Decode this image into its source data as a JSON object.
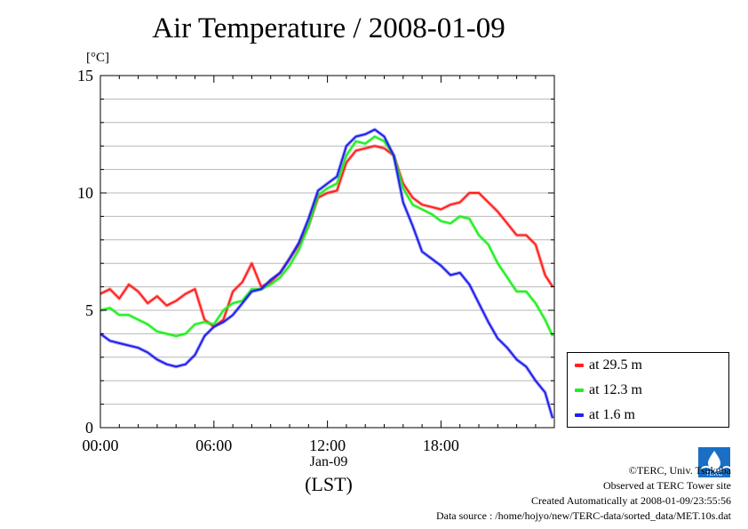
{
  "chart_data": {
    "type": "line",
    "title": "Air Temperature / 2008-01-09",
    "ylabel": "[°C]",
    "xlabel": "(LST)",
    "x_date_label": "Jan-09",
    "ylim": [
      0,
      15
    ],
    "xlim_hours": [
      0,
      23.99
    ],
    "yticks": [
      "0",
      "5",
      "10",
      "15"
    ],
    "xticks": [
      {
        "hour": 0,
        "label": "00:00"
      },
      {
        "hour": 6,
        "label": "06:00"
      },
      {
        "hour": 12,
        "label": "12:00"
      },
      {
        "hour": 18,
        "label": "18:00"
      }
    ],
    "grid": "horizontal",
    "legend_position": "bottom-right",
    "series": [
      {
        "name": "at 29.5 m",
        "color": "#ff2020",
        "x": [
          0,
          0.5,
          1,
          1.5,
          2,
          2.5,
          3,
          3.5,
          4,
          4.5,
          5,
          5.5,
          6,
          6.5,
          7,
          7.5,
          8,
          8.5,
          9,
          9.5,
          10,
          10.5,
          11,
          11.5,
          12,
          12.5,
          13,
          13.5,
          14,
          14.5,
          15,
          15.5,
          16,
          16.5,
          17,
          17.5,
          18,
          18.5,
          19,
          19.5,
          20,
          20.5,
          21,
          21.5,
          22,
          22.5,
          23,
          23.5,
          23.9
        ],
        "y": [
          5.7,
          5.9,
          5.5,
          6.1,
          5.8,
          5.3,
          5.6,
          5.2,
          5.4,
          5.7,
          5.9,
          4.6,
          4.3,
          4.6,
          5.8,
          6.2,
          7.0,
          6.0,
          6.2,
          6.6,
          7.2,
          7.8,
          8.6,
          9.8,
          10.0,
          10.1,
          11.3,
          11.8,
          11.9,
          12.0,
          11.9,
          11.6,
          10.4,
          9.8,
          9.5,
          9.4,
          9.3,
          9.5,
          9.6,
          10.0,
          10.0,
          9.6,
          9.2,
          8.7,
          8.2,
          8.2,
          7.8,
          6.5,
          6.0
        ]
      },
      {
        "name": "at 12.3 m",
        "color": "#20ee20",
        "x": [
          0,
          0.5,
          1,
          1.5,
          2,
          2.5,
          3,
          3.5,
          4,
          4.5,
          5,
          5.5,
          6,
          6.5,
          7,
          7.5,
          8,
          8.5,
          9,
          9.5,
          10,
          10.5,
          11,
          11.5,
          12,
          12.5,
          13,
          13.5,
          14,
          14.5,
          15,
          15.5,
          16,
          16.5,
          17,
          17.5,
          18,
          18.5,
          19,
          19.5,
          20,
          20.5,
          21,
          21.5,
          22,
          22.5,
          23,
          23.5,
          23.9
        ],
        "y": [
          5.0,
          5.1,
          4.8,
          4.8,
          4.6,
          4.4,
          4.1,
          4.0,
          3.9,
          4.0,
          4.4,
          4.5,
          4.4,
          5.0,
          5.3,
          5.4,
          5.9,
          5.9,
          6.1,
          6.4,
          6.9,
          7.6,
          8.6,
          9.9,
          10.2,
          10.4,
          11.6,
          12.2,
          12.1,
          12.4,
          12.2,
          11.6,
          10.2,
          9.5,
          9.3,
          9.1,
          8.8,
          8.7,
          9.0,
          8.9,
          8.2,
          7.8,
          7.0,
          6.4,
          5.8,
          5.8,
          5.3,
          4.6,
          3.9
        ]
      },
      {
        "name": "at 1.6 m",
        "color": "#2020ee",
        "x": [
          0,
          0.5,
          1,
          1.5,
          2,
          2.5,
          3,
          3.5,
          4,
          4.5,
          5,
          5.5,
          6,
          6.5,
          7,
          7.5,
          8,
          8.5,
          9,
          9.5,
          10,
          10.5,
          11,
          11.5,
          12,
          12.5,
          13,
          13.5,
          14,
          14.5,
          15,
          15.5,
          16,
          16.5,
          17,
          17.5,
          18,
          18.5,
          19,
          19.5,
          20,
          20.5,
          21,
          21.5,
          22,
          22.5,
          23,
          23.5,
          23.9
        ],
        "y": [
          4.0,
          3.7,
          3.6,
          3.5,
          3.4,
          3.2,
          2.9,
          2.7,
          2.6,
          2.7,
          3.1,
          3.9,
          4.3,
          4.5,
          4.8,
          5.3,
          5.8,
          5.9,
          6.3,
          6.6,
          7.2,
          7.9,
          8.9,
          10.1,
          10.4,
          10.7,
          12.0,
          12.4,
          12.5,
          12.7,
          12.4,
          11.6,
          9.6,
          8.6,
          7.5,
          7.2,
          6.9,
          6.5,
          6.6,
          6.1,
          5.3,
          4.5,
          3.8,
          3.4,
          2.9,
          2.6,
          2.0,
          1.5,
          0.4
        ]
      }
    ]
  },
  "footer": {
    "copyright": "©TERC, Univ. Tsukuba",
    "observed": "Observed at TERC Tower site",
    "created": "Created Automatically at 2008-01-09/23:55:56",
    "source": "Data source : /home/hojyo/new/TERC-data/sorted_data/MET.10s.dat"
  },
  "logo": {
    "text": "TERC",
    "color": "#1a6fc4"
  }
}
